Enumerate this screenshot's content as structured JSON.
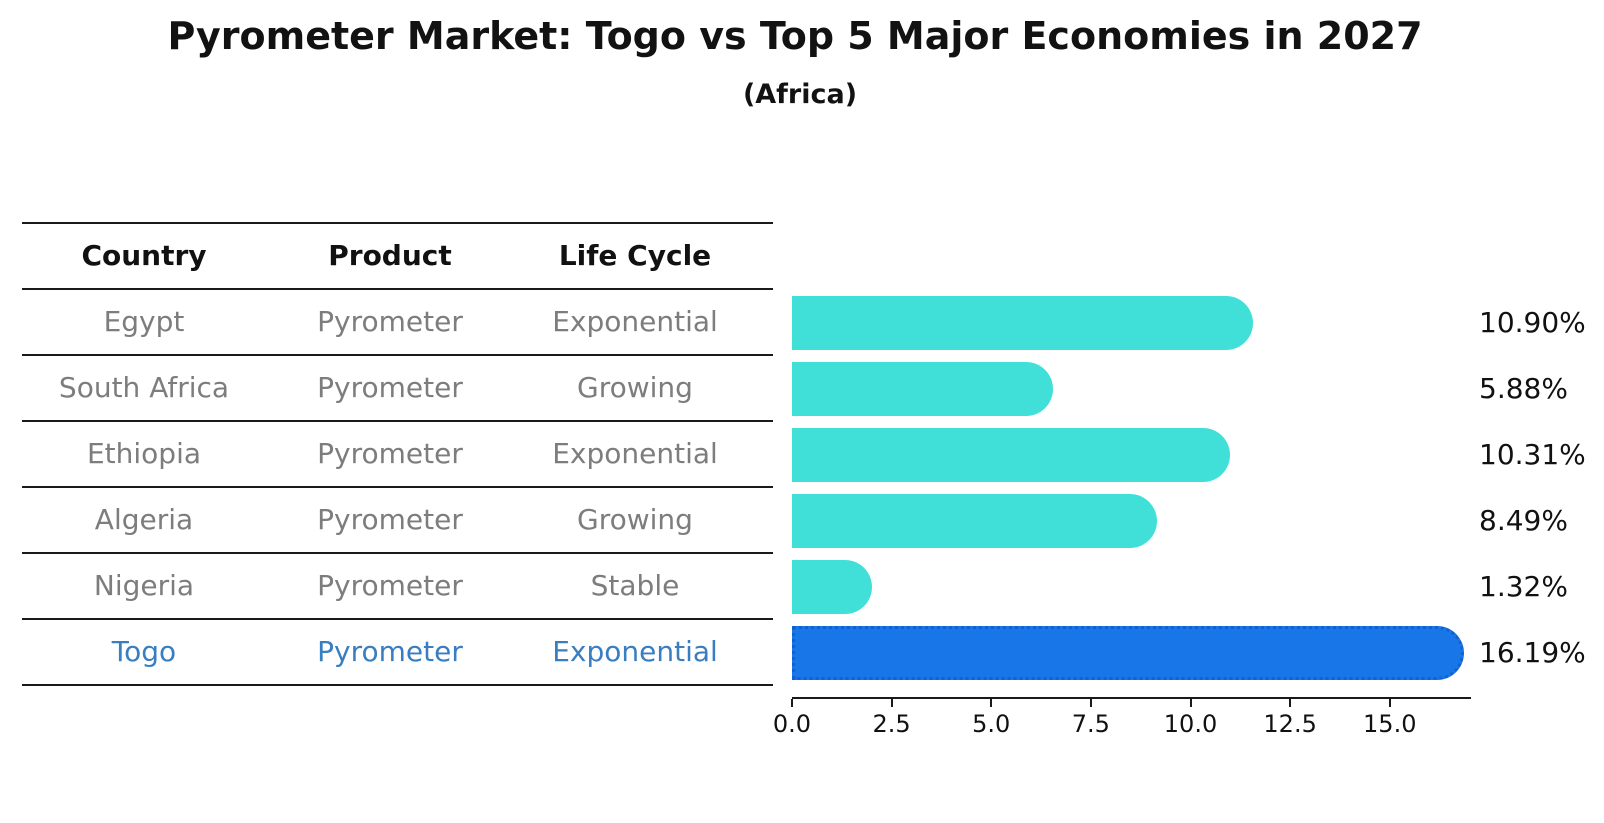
{
  "title": "Pyrometer Market: Togo vs Top 5 Major Economies in 2027",
  "subtitle": "(Africa)",
  "table": {
    "headers": {
      "country": "Country",
      "product": "Product",
      "life_cycle": "Life Cycle"
    },
    "rows": [
      {
        "country": "Egypt",
        "product": "Pyrometer",
        "life_cycle": "Exponential",
        "highlight": false
      },
      {
        "country": "South Africa",
        "product": "Pyrometer",
        "life_cycle": "Growing",
        "highlight": false
      },
      {
        "country": "Ethiopia",
        "product": "Pyrometer",
        "life_cycle": "Exponential",
        "highlight": false
      },
      {
        "country": "Algeria",
        "product": "Pyrometer",
        "life_cycle": "Growing",
        "highlight": false
      },
      {
        "country": "Nigeria",
        "product": "Pyrometer",
        "life_cycle": "Stable",
        "highlight": false
      },
      {
        "country": "Togo",
        "product": "Pyrometer",
        "life_cycle": "Exponential",
        "highlight": true
      }
    ]
  },
  "chart_data": {
    "type": "bar",
    "orientation": "horizontal",
    "categories": [
      "Egypt",
      "South Africa",
      "Ethiopia",
      "Algeria",
      "Nigeria",
      "Togo"
    ],
    "values": [
      10.9,
      5.88,
      10.31,
      8.49,
      1.32,
      16.19
    ],
    "value_labels": [
      "10.90%",
      "5.88%",
      "10.31%",
      "8.49%",
      "1.32%",
      "16.19%"
    ],
    "highlight_index": 5,
    "x_ticks": [
      0.0,
      2.5,
      5.0,
      7.5,
      10.0,
      12.5,
      15.0
    ],
    "x_tick_labels": [
      "0.0",
      "2.5",
      "5.0",
      "7.5",
      "10.0",
      "12.5",
      "15.0"
    ],
    "xlim": [
      0,
      17.0
    ],
    "grid": false,
    "legend": false,
    "colors": {
      "bar": "#40e0d8",
      "highlight_bar": "#1976e8",
      "highlight_text": "#3a7ec2",
      "row_text": "#7d7d7d",
      "axis": "#1a1a1a"
    }
  }
}
